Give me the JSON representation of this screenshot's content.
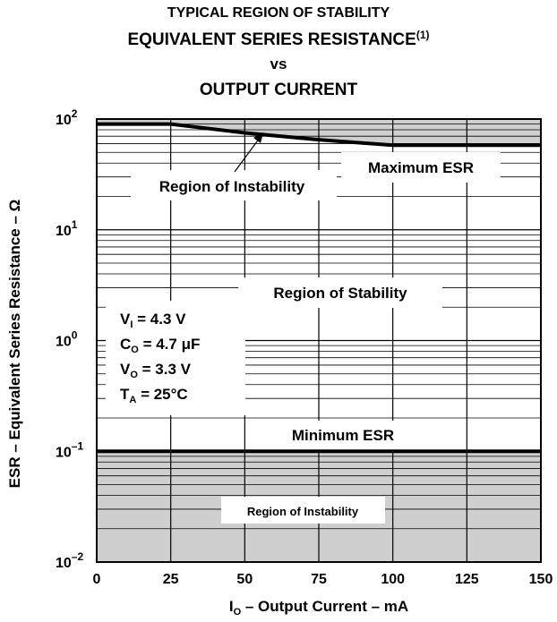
{
  "chart_data": {
    "type": "line",
    "title": "TYPICAL REGION OF STABILITY",
    "title_line2": "EQUIVALENT SERIES RESISTANCE",
    "title_line2_superscript": "(1)",
    "title_line3": "vs",
    "title_line4": "OUTPUT CURRENT",
    "xlabel": {
      "main": "I",
      "sub": "O",
      "rest": " – Output Current – mA"
    },
    "ylabel": "ESR – Equivalent Series Resistance – Ω",
    "x_ticks": [
      "0",
      "25",
      "50",
      "75",
      "100",
      "125",
      "150"
    ],
    "x_tick_values": [
      0,
      25,
      50,
      75,
      100,
      125,
      150
    ],
    "y_ticks": [
      {
        "base": "10",
        "exp": "2",
        "value": 100
      },
      {
        "base": "10",
        "exp": "1",
        "value": 10
      },
      {
        "base": "10",
        "exp": "0",
        "value": 1
      },
      {
        "base": "10",
        "exp": "–1",
        "value": 0.1
      },
      {
        "base": "10",
        "exp": "–2",
        "value": 0.01
      }
    ],
    "xlim": [
      0,
      150
    ],
    "ylim": [
      0.01,
      100
    ],
    "yscale": "log",
    "grid": true,
    "series": [
      {
        "name": "Maximum ESR",
        "x": [
          0,
          25,
          50,
          75,
          100,
          125,
          150
        ],
        "y": [
          90,
          90,
          75,
          65,
          58,
          58,
          58
        ]
      },
      {
        "name": "Minimum ESR",
        "x": [
          0,
          25,
          50,
          75,
          100,
          125,
          150
        ],
        "y": [
          0.1,
          0.1,
          0.1,
          0.1,
          0.1,
          0.1,
          0.1
        ]
      }
    ],
    "annotations": {
      "instability_upper": "Region of Instability",
      "max_esr": "Maximum ESR",
      "stability": "Region of Stability",
      "min_esr": "Minimum ESR",
      "instability_lower": "Region of Instability"
    },
    "conditions": [
      {
        "main": "V",
        "sub": "I",
        "rest": " = 4.3 V"
      },
      {
        "main": "C",
        "sub": "O",
        "rest": " = 4.7 μF"
      },
      {
        "main": "V",
        "sub": "O",
        "rest": " = 3.3 V"
      },
      {
        "main": "T",
        "sub": "A",
        "rest": " = 25°C"
      }
    ],
    "colors": {
      "region_fill": "#cfcfcf",
      "line": "#000000",
      "background": "#ffffff"
    }
  }
}
